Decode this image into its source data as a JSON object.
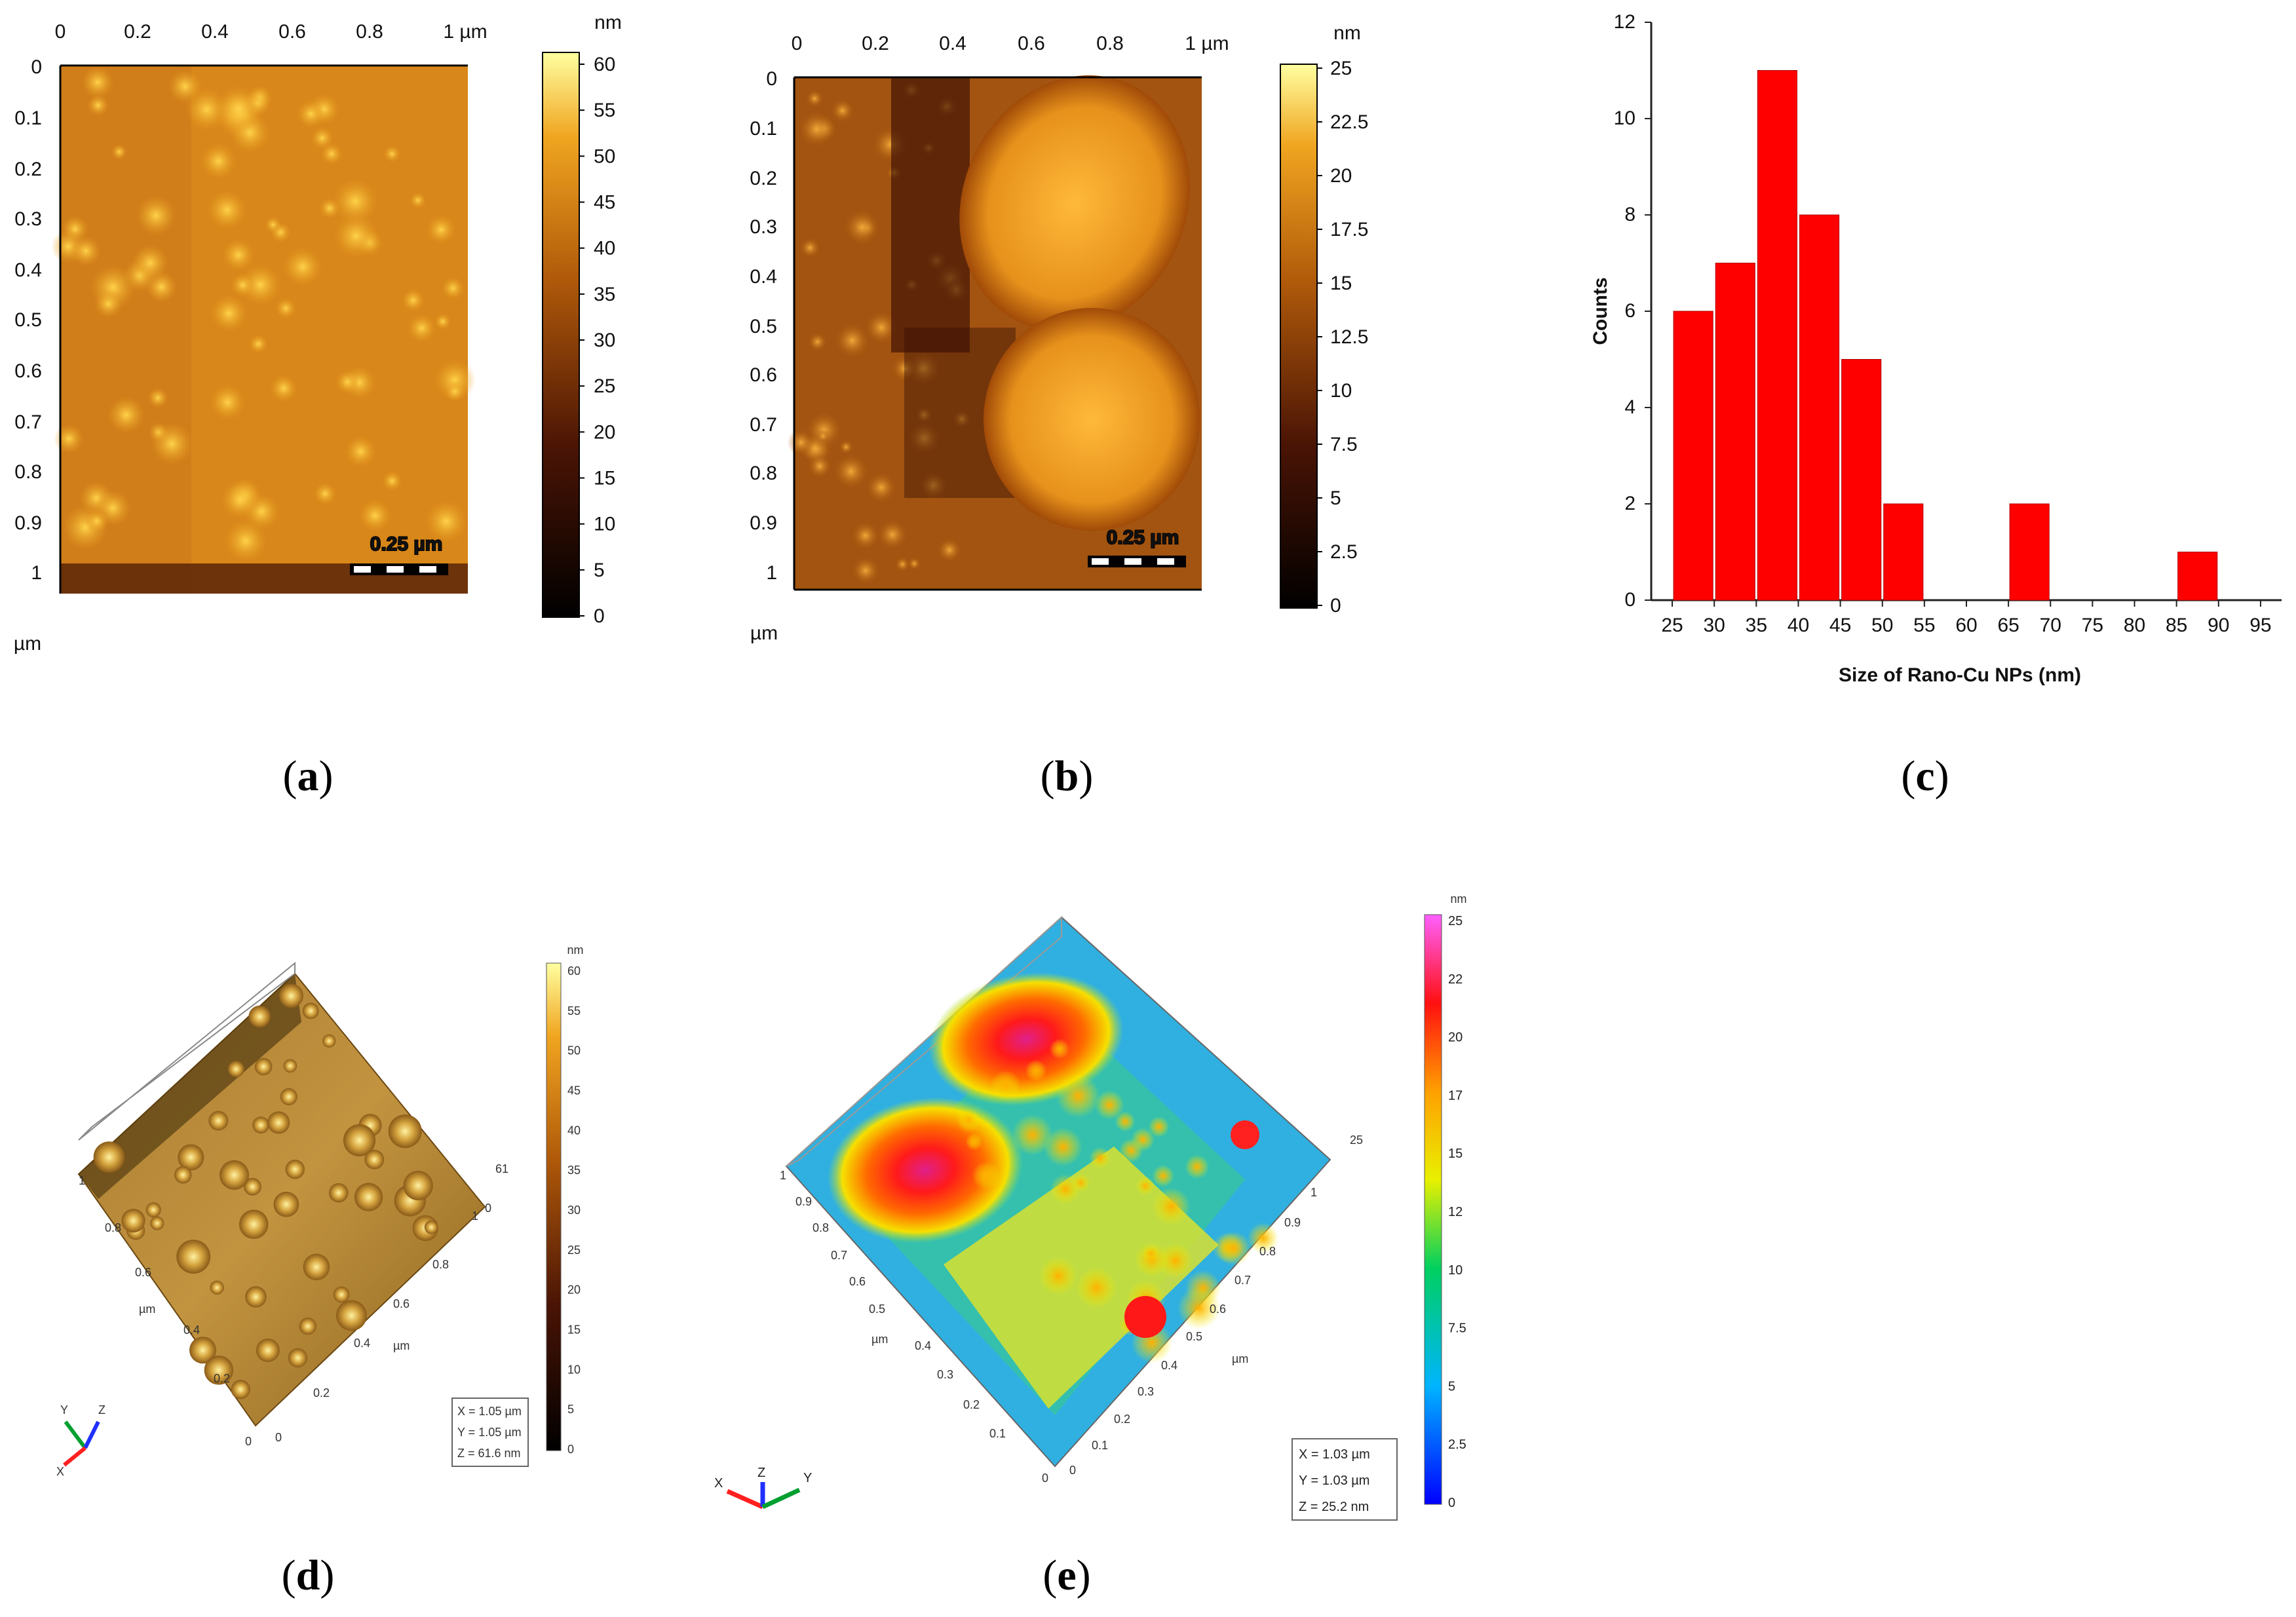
{
  "panels": {
    "a": {
      "caption_open": "(",
      "caption_letter": "a",
      "caption_close": ")",
      "x_ticks": [
        "0",
        "0.2",
        "0.4",
        "0.6",
        "0.8",
        "1 µm"
      ],
      "y_ticks": [
        "0",
        "0.1",
        "0.2",
        "0.3",
        "0.4",
        "0.5",
        "0.6",
        "0.7",
        "0.8",
        "0.9",
        "1"
      ],
      "axis_unit": "µm",
      "scalebar_label": "0.25 µm",
      "colorbar_unit": "nm",
      "colorbar_ticks": [
        "60",
        "55",
        "50",
        "45",
        "40",
        "35",
        "30",
        "25",
        "20",
        "15",
        "10",
        "5",
        "0"
      ]
    },
    "b": {
      "caption_open": "(",
      "caption_letter": "b",
      "caption_close": ")",
      "x_ticks": [
        "0",
        "0.2",
        "0.4",
        "0.6",
        "0.8",
        "1 µm"
      ],
      "y_ticks": [
        "0",
        "0.1",
        "0.2",
        "0.3",
        "0.4",
        "0.5",
        "0.6",
        "0.7",
        "0.8",
        "0.9",
        "1"
      ],
      "axis_unit": "µm",
      "scalebar_label": "0.25 µm",
      "colorbar_unit": "nm",
      "colorbar_ticks": [
        "25",
        "22.5",
        "20",
        "17.5",
        "15",
        "12.5",
        "10",
        "7.5",
        "5",
        "2.5",
        "0"
      ]
    },
    "c": {
      "caption_open": "(",
      "caption_letter": "c",
      "caption_close": ")"
    },
    "d": {
      "caption_open": "(",
      "caption_letter": "d",
      "caption_close": ")",
      "colorbar_unit": "nm",
      "colorbar_ticks": [
        "60",
        "55",
        "50",
        "45",
        "40",
        "35",
        "30",
        "25",
        "20",
        "15",
        "10",
        "5",
        "0"
      ],
      "info": [
        "X = 1.05 µm",
        "Y = 1.05 µm",
        "Z = 61.6 nm"
      ],
      "z_max": "61",
      "z_min": "0",
      "left_axis_ticks": [
        "1",
        "0.8",
        "0.6",
        "0.4",
        "0.2",
        "0"
      ],
      "right_axis_ticks": [
        "0",
        "0.2",
        "0.4",
        "0.6",
        "0.8",
        "1"
      ],
      "axis_unit": "µm",
      "axes": [
        "X",
        "Y",
        "Z"
      ]
    },
    "e": {
      "caption_open": "(",
      "caption_letter": "e",
      "caption_close": ")",
      "colorbar_unit": "nm",
      "colorbar_ticks": [
        "25",
        "22",
        "20",
        "17",
        "15",
        "12",
        "10",
        "7.5",
        "5",
        "2.5",
        "0"
      ],
      "info": [
        "X = 1.03 µm",
        "Y = 1.03 µm",
        "Z = 25.2 nm"
      ],
      "z_max": "25",
      "left_axis_ticks": [
        "1",
        "0.9",
        "0.8",
        "0.7",
        "0.6",
        "0.5",
        "0.4",
        "0.3",
        "0.2",
        "0.1",
        "0"
      ],
      "right_axis_ticks": [
        "0",
        "0.1",
        "0.2",
        "0.3",
        "0.4",
        "0.5",
        "0.6",
        "0.7",
        "0.8",
        "0.9",
        "1"
      ],
      "axis_unit": "µm",
      "axes": [
        "X",
        "Z",
        "Y"
      ]
    }
  },
  "colors": {
    "bar": "#ff0000",
    "afm_dark": "#1a0500",
    "afm_mid": "#c46a0c",
    "afm_light": "#f7c23a"
  },
  "chart_data": {
    "type": "bar",
    "title": "",
    "xlabel": "Size of Rano-Cu NPs (nm)",
    "ylabel": "Counts",
    "bins": [
      [
        25,
        30
      ],
      [
        30,
        35
      ],
      [
        35,
        40
      ],
      [
        40,
        45
      ],
      [
        45,
        50
      ],
      [
        50,
        55
      ],
      [
        55,
        60
      ],
      [
        60,
        65
      ],
      [
        65,
        70
      ],
      [
        70,
        75
      ],
      [
        75,
        80
      ],
      [
        80,
        85
      ],
      [
        85,
        90
      ],
      [
        90,
        95
      ]
    ],
    "values": [
      6,
      7,
      11,
      8,
      5,
      2,
      0,
      0,
      2,
      0,
      0,
      0,
      1,
      0
    ],
    "x_ticks": [
      "25",
      "30",
      "35",
      "40",
      "45",
      "50",
      "55",
      "60",
      "65",
      "70",
      "75",
      "80",
      "85",
      "90",
      "95"
    ],
    "y_ticks": [
      "0",
      "2",
      "4",
      "6",
      "8",
      "10",
      "12"
    ],
    "xlim": [
      22.5,
      97.5
    ],
    "ylim": [
      0,
      12
    ]
  }
}
